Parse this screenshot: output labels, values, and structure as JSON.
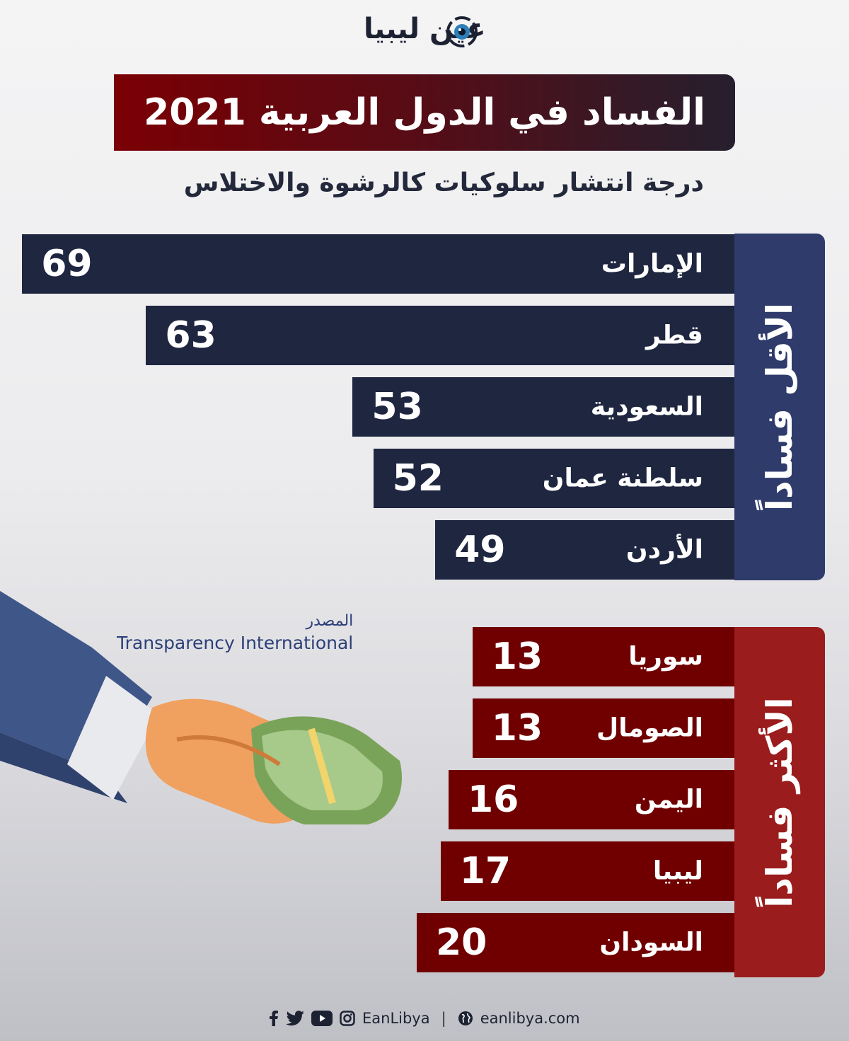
{
  "logo": {
    "text": "عين ليبيا"
  },
  "title": "الفساد في الدول العربية 2021",
  "subtitle": "درجة انتشار سلوكيات كالرشوة والاختلاس",
  "least_corrupt_label": "الأقل فساداً",
  "most_corrupt_label": "الأكثر فساداً",
  "source": {
    "label": "المصدر",
    "name": "Transparency International"
  },
  "footer": {
    "handle": "EanLibya",
    "website": "eanlibya.com",
    "icons": [
      "facebook-icon",
      "twitter-icon",
      "youtube-icon",
      "instagram-icon",
      "globe-icon"
    ]
  },
  "colors": {
    "least_bar": "#1f2640",
    "least_side": "#2f3b6b",
    "most_bar": "#700000",
    "most_side": "#9a1c1c"
  },
  "chart_data": [
    {
      "type": "bar",
      "group": "الأقل فساداً",
      "categories": [
        "الإمارات",
        "قطر",
        "السعودية",
        "سلطنة عمان",
        "الأردن"
      ],
      "values": [
        69,
        63,
        53,
        52,
        49
      ]
    },
    {
      "type": "bar",
      "group": "الأكثر فساداً",
      "categories": [
        "سوريا",
        "الصومال",
        "اليمن",
        "ليبيا",
        "السودان"
      ],
      "values": [
        13,
        13,
        16,
        17,
        20
      ]
    }
  ]
}
